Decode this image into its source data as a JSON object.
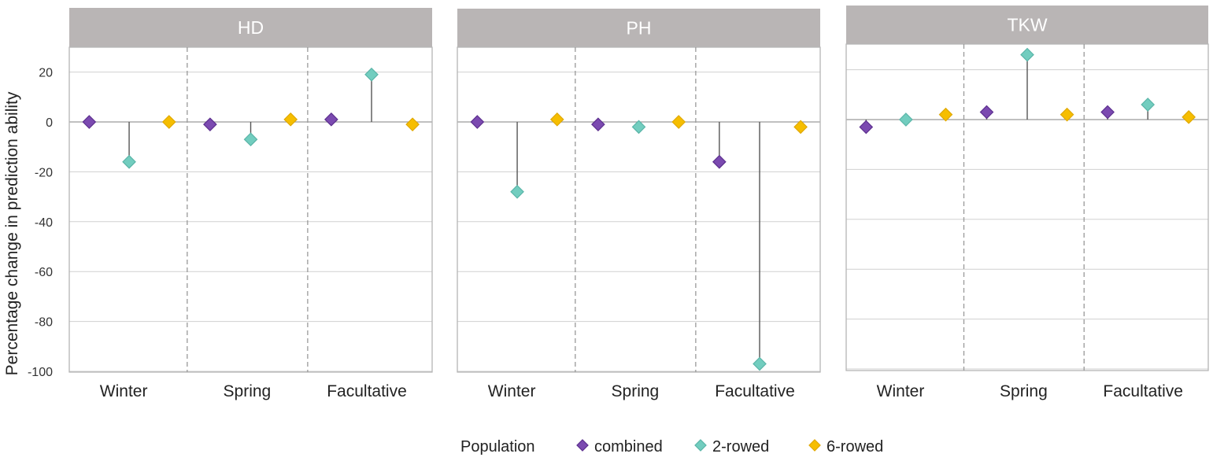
{
  "chart_data": {
    "type": "scatter",
    "ylabel": "Percentage change in prediction ability",
    "ylim": [
      -100,
      30
    ],
    "yticks": [
      20,
      0,
      -20,
      -40,
      -60,
      -80,
      -100
    ],
    "categories": [
      "Winter",
      "Spring",
      "Facultative"
    ],
    "legend": {
      "title": "Population",
      "entries": [
        "combined",
        "2-rowed",
        "6-rowed"
      ],
      "placement": "bottom"
    },
    "colors": {
      "combined": "#7b4ab0",
      "2-rowed": "#72cdbf",
      "6-rowed": "#f6be00",
      "strip": "#b9b5b5",
      "stem": "#555555",
      "grid": "#d0d0d0"
    },
    "panels": [
      {
        "title": "HD",
        "series": [
          {
            "name": "combined",
            "values": [
              0,
              -1,
              1
            ]
          },
          {
            "name": "2-rowed",
            "values": [
              -16,
              -7,
              19
            ]
          },
          {
            "name": "6-rowed",
            "values": [
              0,
              1,
              -1
            ]
          }
        ]
      },
      {
        "title": "PH",
        "series": [
          {
            "name": "combined",
            "values": [
              0,
              -1,
              -16
            ]
          },
          {
            "name": "2-rowed",
            "values": [
              -28,
              -2,
              -97
            ]
          },
          {
            "name": "6-rowed",
            "values": [
              1,
              0,
              -2
            ]
          }
        ]
      },
      {
        "title": "TKW",
        "series": [
          {
            "name": "combined",
            "values": [
              -3,
              3,
              3
            ]
          },
          {
            "name": "2-rowed",
            "values": [
              0,
              26,
              6
            ]
          },
          {
            "name": "6-rowed",
            "values": [
              2,
              2,
              1
            ]
          }
        ]
      }
    ]
  }
}
